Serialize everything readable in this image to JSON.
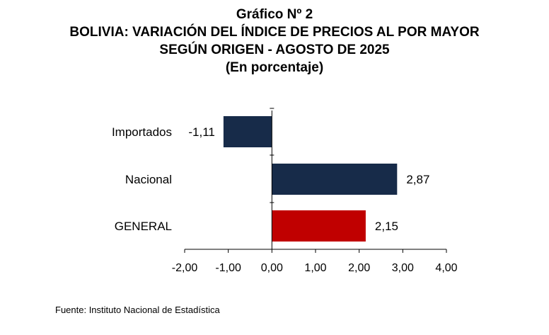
{
  "header": {
    "line1": "Gráfico Nº 2",
    "line2": "BOLIVIA: VARIACIÓN DEL ÍNDICE DE PRECIOS AL POR MAYOR",
    "line3": "SEGÚN ORIGEN - AGOSTO DE 2025",
    "line4": "(En porcentaje)"
  },
  "chart_data": {
    "type": "bar",
    "orientation": "horizontal",
    "categories": [
      "Importados",
      "Nacional",
      "GENERAL"
    ],
    "values": [
      -1.11,
      2.87,
      2.15
    ],
    "value_labels": [
      "-1,11",
      "2,87",
      "2,15"
    ],
    "colors": [
      "#172b49",
      "#172b49",
      "#c00000"
    ],
    "xlim": [
      -2,
      4
    ],
    "xticks": [
      -2,
      -1,
      0,
      1,
      2,
      3,
      4
    ],
    "xtick_labels": [
      "-2,00",
      "-1,00",
      "0,00",
      "1,00",
      "2,00",
      "3,00",
      "4,00"
    ],
    "grid": false,
    "legend": "none"
  },
  "source": "Fuente: Instituto Nacional de Estadística"
}
